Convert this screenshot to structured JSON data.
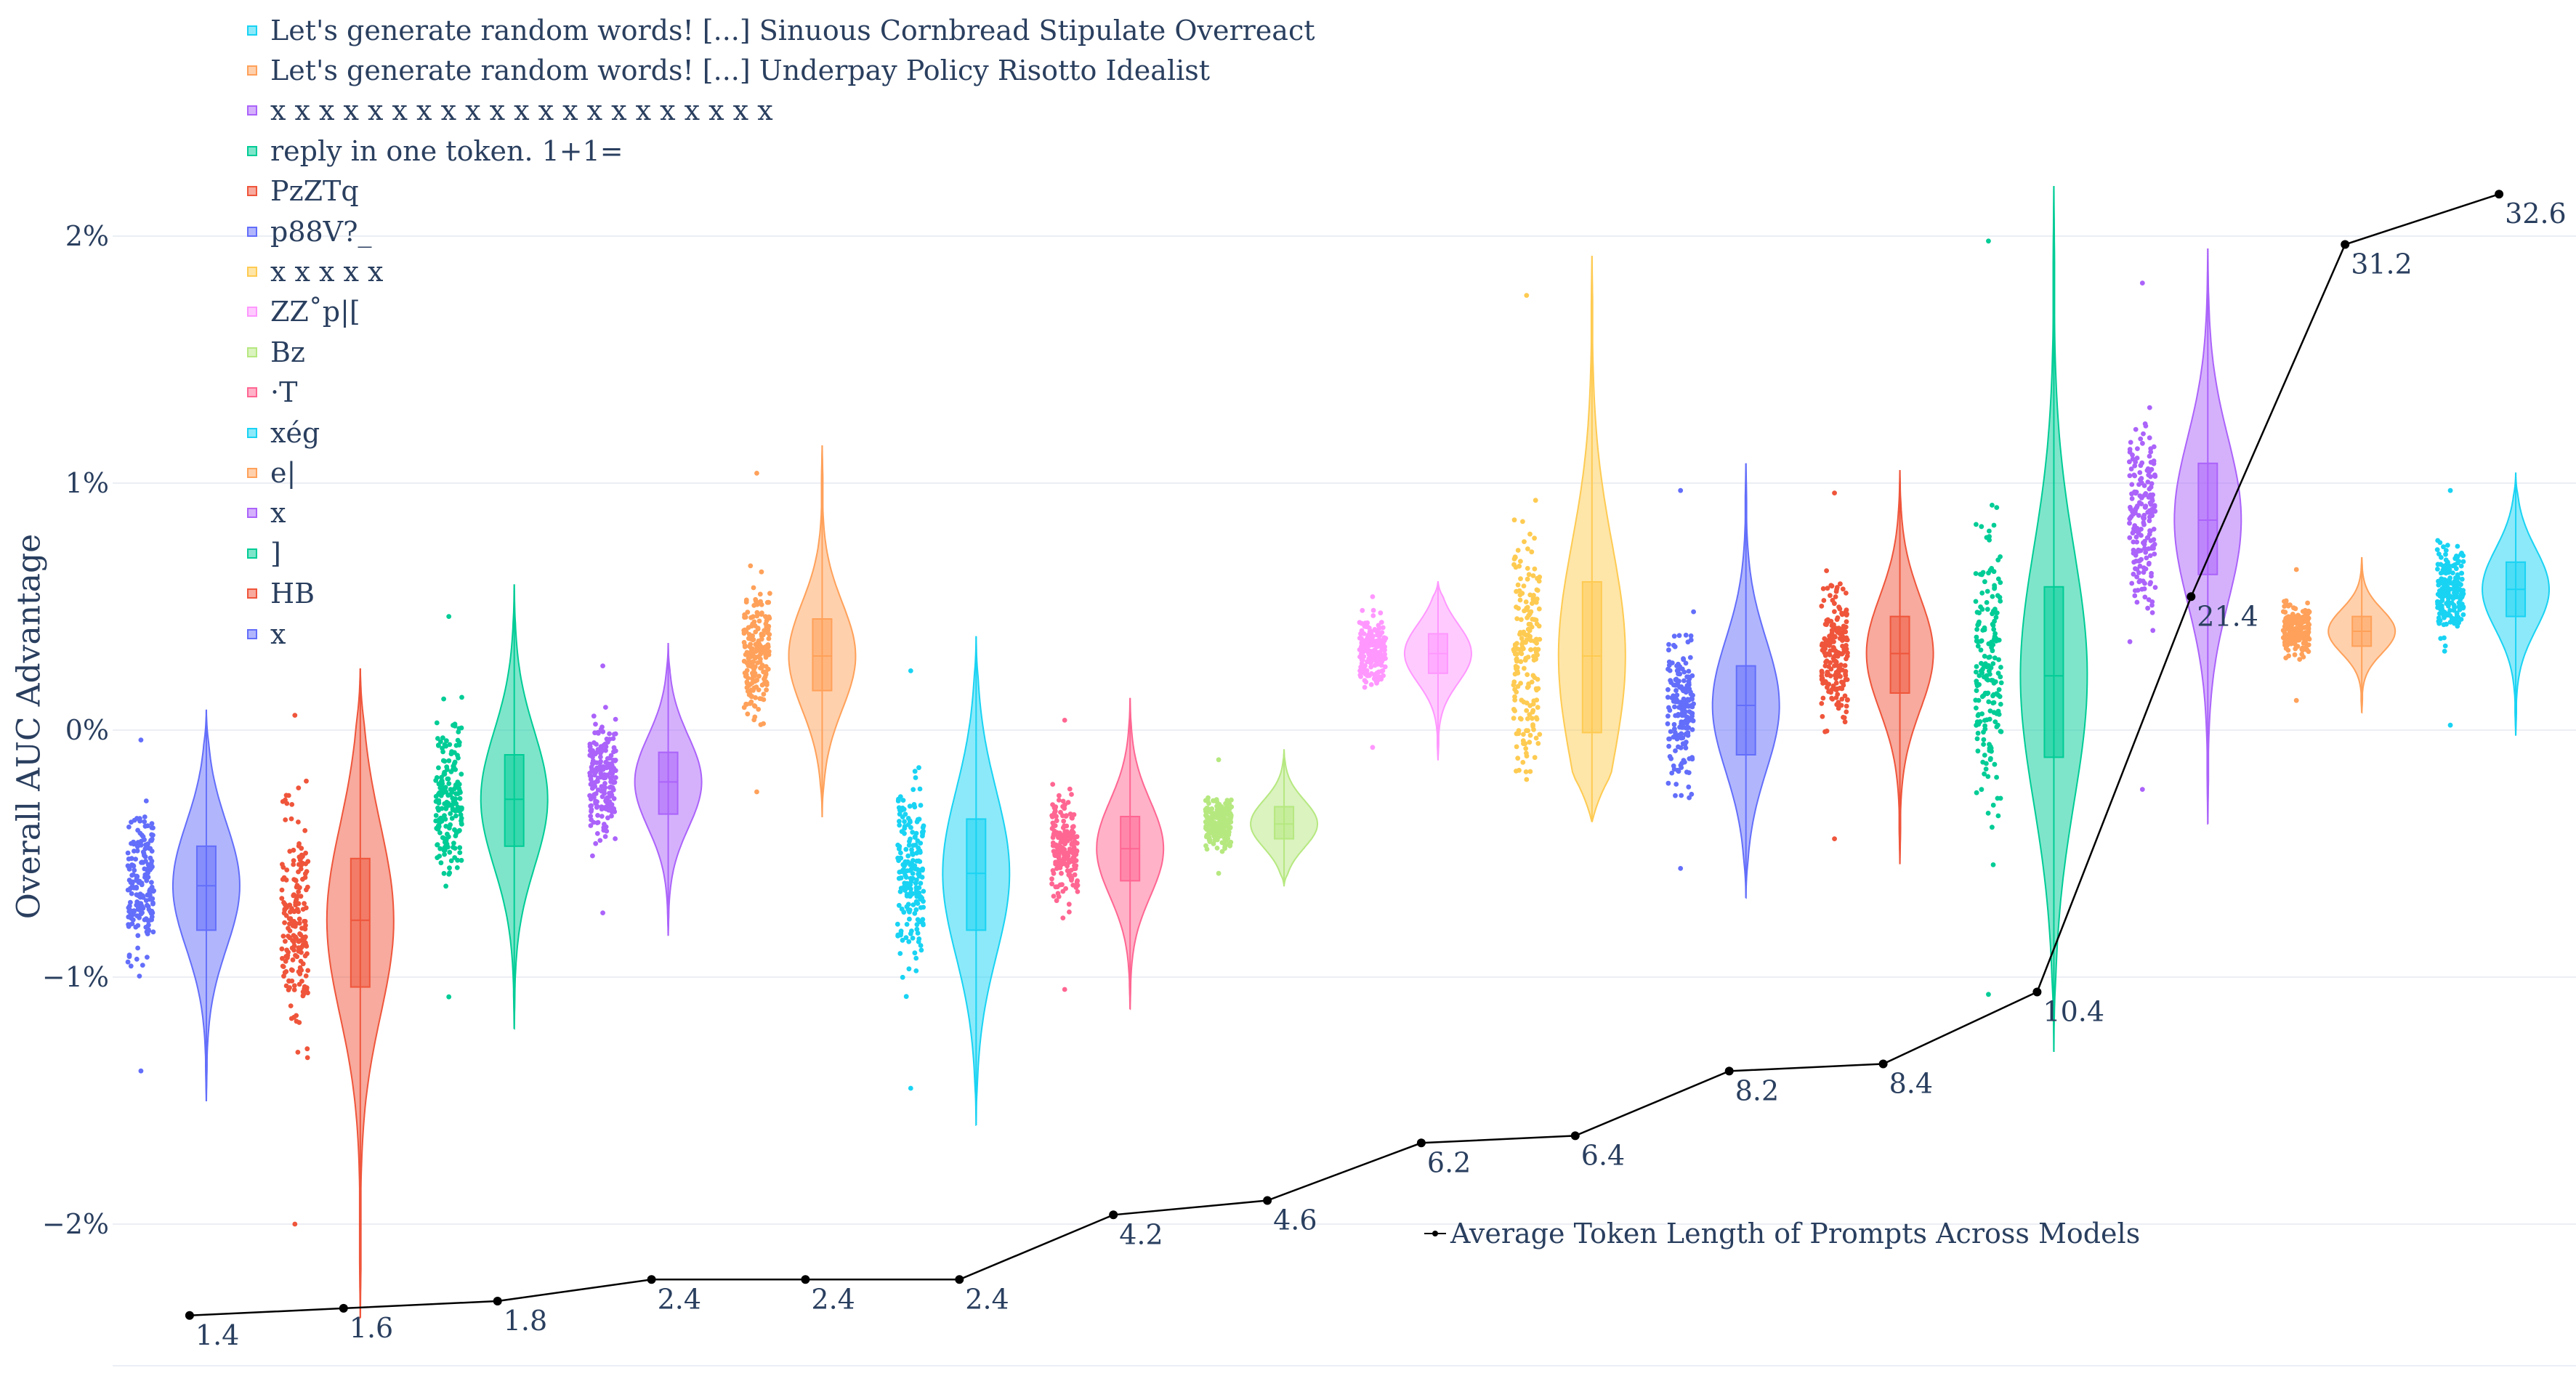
{
  "chart_data": {
    "type": "violin",
    "ylabel": "Overall AUC Advantage",
    "ylim": [
      -0.027,
      0.0255
    ],
    "yticks": [
      {
        "value": 0.02,
        "label": "2%"
      },
      {
        "value": 0.01,
        "label": "1%"
      },
      {
        "value": 0.0,
        "label": "0%"
      },
      {
        "value": -0.01,
        "label": "−1%"
      },
      {
        "value": -0.02,
        "label": "−2%"
      }
    ],
    "series": [
      {
        "name": "x",
        "color": "#636efa",
        "q1": -0.0081,
        "median": -0.0063,
        "q3": -0.0047,
        "min": -0.015,
        "max": 0.0008,
        "pmin": -0.0138,
        "pmax": -0.0004,
        "avg_tokens": 1.4
      },
      {
        "name": "HB",
        "color": "#ef553b",
        "q1": -0.0104,
        "median": -0.0077,
        "q3": -0.0052,
        "min": -0.0238,
        "max": 0.0025,
        "pmin": -0.02,
        "pmax": 0.0006,
        "avg_tokens": 1.6
      },
      {
        "name": "]",
        "color": "#00cc96",
        "q1": -0.0047,
        "median": -0.0028,
        "q3": -0.001,
        "min": -0.0121,
        "max": 0.0059,
        "pmin": -0.0108,
        "pmax": 0.0046,
        "avg_tokens": 1.8
      },
      {
        "name": "x",
        "color": "#ab63fa",
        "q1": -0.0034,
        "median": -0.0021,
        "q3": -0.0009,
        "min": -0.0083,
        "max": 0.0035,
        "pmin": -0.0074,
        "pmax": 0.0026,
        "avg_tokens": 2.4
      },
      {
        "name": "e|",
        "color": "#ffa15a",
        "q1": 0.0016,
        "median": 0.003,
        "q3": 0.0045,
        "min": -0.0035,
        "max": 0.0115,
        "pmin": -0.0025,
        "pmax": 0.0104,
        "avg_tokens": 2.4
      },
      {
        "name": "xég",
        "color": "#19d3f3",
        "q1": -0.0081,
        "median": -0.0058,
        "q3": -0.0036,
        "min": -0.016,
        "max": 0.0038,
        "pmin": -0.0145,
        "pmax": 0.0024,
        "avg_tokens": 2.4
      },
      {
        "name": "·T",
        "color": "#ff6692",
        "q1": -0.0061,
        "median": -0.0048,
        "q3": -0.0035,
        "min": -0.0113,
        "max": 0.0013,
        "pmin": -0.0105,
        "pmax": 0.0004,
        "avg_tokens": 4.2
      },
      {
        "name": "Bz",
        "color": "#b6e880",
        "q1": -0.0044,
        "median": -0.0038,
        "q3": -0.0031,
        "min": -0.0063,
        "max": -0.0008,
        "pmin": -0.0058,
        "pmax": -0.0012,
        "avg_tokens": 4.6
      },
      {
        "name": "ZZ˚p|[",
        "color": "#ff97ff",
        "q1": 0.0023,
        "median": 0.0031,
        "q3": 0.0039,
        "min": -0.0012,
        "max": 0.006,
        "pmin": -0.0007,
        "pmax": 0.0054,
        "avg_tokens": 6.2
      },
      {
        "name": "x x x x x",
        "color": "#fecb52",
        "q1": -0.0001,
        "median": 0.003,
        "q3": 0.006,
        "min": -0.0037,
        "max": 0.0192,
        "pmin": -0.002,
        "pmax": 0.0176,
        "avg_tokens": 6.4
      },
      {
        "name": "p88V?_",
        "color": "#636efa",
        "q1": -0.001,
        "median": 0.001,
        "q3": 0.0026,
        "min": -0.0068,
        "max": 0.0108,
        "pmin": -0.0056,
        "pmax": 0.0097,
        "avg_tokens": 8.2
      },
      {
        "name": "PzZTq",
        "color": "#ef553b",
        "q1": 0.0015,
        "median": 0.0031,
        "q3": 0.0046,
        "min": -0.0054,
        "max": 0.0105,
        "pmin": -0.0044,
        "pmax": 0.0096,
        "avg_tokens": 8.4
      },
      {
        "name": "reply in one token. 1+1=",
        "color": "#00cc96",
        "q1": -0.0011,
        "median": 0.0022,
        "q3": 0.0058,
        "min": -0.013,
        "max": 0.022,
        "pmin": -0.0107,
        "pmax": 0.0198,
        "avg_tokens": 10.4
      },
      {
        "name": "x x x x x x x x x x x x x x x x x x x x x",
        "color": "#ab63fa",
        "q1": 0.0063,
        "median": 0.0085,
        "q3": 0.0108,
        "min": -0.0038,
        "max": 0.0195,
        "pmin": -0.0024,
        "pmax": 0.0181,
        "avg_tokens": 21.4
      },
      {
        "name": "Let's generate random words! [...] Underpay Policy Risotto Idealist",
        "color": "#ffa15a",
        "q1": 0.0034,
        "median": 0.004,
        "q3": 0.0046,
        "min": 0.0007,
        "max": 0.007,
        "pmin": 0.0012,
        "pmax": 0.0065,
        "avg_tokens": 31.2
      },
      {
        "name": "Let's generate random words! [...] Sinuous Cornbread Stipulate Overreact",
        "color": "#19d3f3",
        "q1": 0.0046,
        "median": 0.0057,
        "q3": 0.0068,
        "min": -0.0002,
        "max": 0.0104,
        "pmin": 0.0002,
        "pmax": 0.0097,
        "avg_tokens": 32.6
      }
    ],
    "line_series": {
      "name": "Average Token Length of Prompts Across Models",
      "color": "#000000",
      "values": [
        1.4,
        1.6,
        1.8,
        2.4,
        2.4,
        2.4,
        4.2,
        4.6,
        6.2,
        6.4,
        8.2,
        8.4,
        10.4,
        21.4,
        31.2,
        32.6
      ],
      "labels": [
        "1.4",
        "1.6",
        "1.8",
        "2.4",
        "2.4",
        "2.4",
        "4.2",
        "4.6",
        "6.2",
        "6.4",
        "8.2",
        "8.4",
        "10.4",
        "21.4",
        "31.2",
        "32.6"
      ],
      "secondary_range": [
        -6.0,
        32.6
      ]
    },
    "legend_order": [
      "Let's generate random words! [...] Sinuous Cornbread Stipulate Overreact",
      "Let's generate random words! [...] Underpay Policy Risotto Idealist",
      "x x x x x x x x x x x x x x x x x x x x x",
      "reply in one token. 1+1=",
      "PzZTq",
      "p88V?_",
      "x x x x x",
      "ZZ˚p|[",
      "Bz",
      "·T",
      "xég",
      "e|",
      "x",
      "]",
      "HB",
      "x"
    ]
  }
}
